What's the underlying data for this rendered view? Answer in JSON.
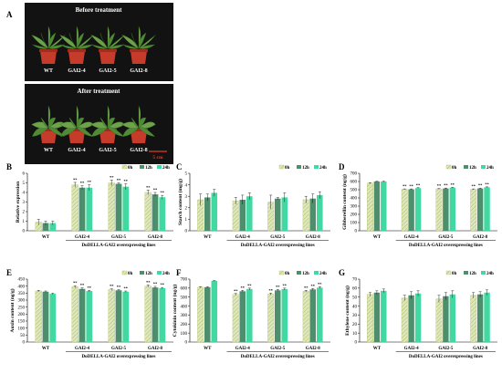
{
  "figure": {
    "panel_a": {
      "letter": "A",
      "top_title": "Before treatment",
      "bottom_title": "After treatment",
      "top_labels": [
        "WT",
        "GAI2-4",
        "GAI2-5",
        "GAI2-8"
      ],
      "bottom_labels": [
        "WT",
        "GAI2-4",
        "GAI2-5",
        "GAI2-8"
      ],
      "scale_bar": "5 cm"
    },
    "legend": [
      "0h",
      "12h",
      "24h"
    ],
    "colors": {
      "0h": "#dfe7bf",
      "0h_hatch": "#b7c86e",
      "12h": "#4d8f6c",
      "24h": "#41d8a1",
      "photo_bg": "#121212",
      "pot": "#c73b2a"
    }
  },
  "chart_data": [
    {
      "panel": "B",
      "type": "bar",
      "ylabel": "Relative expression",
      "categories": [
        "WT",
        "GAI2-4",
        "GAI2-5",
        "GAI2-8"
      ],
      "group_title": "DoDELLA-GAI2 overexpressing lines",
      "ylim": [
        0,
        6
      ],
      "yticks": [
        0,
        1,
        2,
        3,
        4,
        5,
        6
      ],
      "series": [
        {
          "name": "0h",
          "values": [
            0.9,
            4.8,
            5.0,
            4.0
          ],
          "errors": [
            0.3,
            0.25,
            0.3,
            0.25
          ]
        },
        {
          "name": "12h",
          "values": [
            0.8,
            4.5,
            4.9,
            3.8
          ],
          "errors": [
            0.2,
            0.2,
            0.1,
            0.2
          ]
        },
        {
          "name": "24h",
          "values": [
            0.8,
            4.5,
            4.6,
            3.5
          ],
          "errors": [
            0.2,
            0.3,
            0.3,
            0.2
          ]
        }
      ],
      "significance": [
        [
          "",
          "**",
          "**",
          "**"
        ],
        [
          "",
          "**",
          "**",
          "**"
        ],
        [
          "",
          "**",
          "**",
          "**"
        ]
      ]
    },
    {
      "panel": "C",
      "type": "bar",
      "ylabel": "Starch content (mg/g)",
      "categories": [
        "WT",
        "GAI2-4",
        "GAI2-5",
        "GAI2-8"
      ],
      "group_title": "DoDELLA-GAI2 overexpressing lines",
      "ylim": [
        0,
        5
      ],
      "yticks": [
        0,
        1,
        2,
        3,
        4,
        5
      ],
      "series": [
        {
          "name": "0h",
          "values": [
            2.7,
            2.6,
            2.5,
            2.7
          ],
          "errors": [
            0.5,
            0.3,
            0.6,
            0.3
          ]
        },
        {
          "name": "12h",
          "values": [
            2.9,
            2.7,
            2.8,
            2.8
          ],
          "errors": [
            0.3,
            0.4,
            0.1,
            0.4
          ]
        },
        {
          "name": "24h",
          "values": [
            3.3,
            3.0,
            2.9,
            3.1
          ],
          "errors": [
            0.3,
            0.3,
            0.4,
            0.3
          ]
        }
      ],
      "significance": [
        [
          "",
          "",
          "",
          ""
        ],
        [
          "",
          "",
          "",
          ""
        ],
        [
          "",
          "",
          "",
          ""
        ]
      ]
    },
    {
      "panel": "D",
      "type": "bar",
      "ylabel": "Gibberellin content (ng/g)",
      "categories": [
        "WT",
        "GAI2-4",
        "GAI2-5",
        "GAI2-8"
      ],
      "group_title": "DoDELLA-GAI2 overexpressing lines",
      "ylim": [
        0,
        700
      ],
      "yticks": [
        0,
        100,
        200,
        300,
        400,
        500,
        600,
        700
      ],
      "series": [
        {
          "name": "0h",
          "values": [
            580,
            505,
            510,
            505
          ],
          "errors": [
            5,
            5,
            5,
            5
          ]
        },
        {
          "name": "12h",
          "values": [
            600,
            505,
            515,
            515
          ],
          "errors": [
            5,
            5,
            5,
            5
          ]
        },
        {
          "name": "24h",
          "values": [
            600,
            520,
            525,
            530
          ],
          "errors": [
            5,
            5,
            5,
            5
          ]
        }
      ],
      "significance": [
        [
          "",
          "**",
          "**",
          "**"
        ],
        [
          "",
          "**",
          "**",
          "**"
        ],
        [
          "",
          "**",
          "**",
          "**"
        ]
      ]
    },
    {
      "panel": "E",
      "type": "bar",
      "ylabel": "Auxin content (ng/g)",
      "categories": [
        "WT",
        "GAI2-4",
        "GAI2-5",
        "GAI2-8"
      ],
      "group_title": "DoDELLA-GAI2 overexpressing lines",
      "ylim": [
        0,
        450
      ],
      "yticks": [
        0,
        50,
        100,
        150,
        200,
        250,
        300,
        350,
        400,
        450
      ],
      "series": [
        {
          "name": "0h",
          "values": [
            365,
            395,
            375,
            400
          ],
          "errors": [
            5,
            8,
            5,
            8
          ]
        },
        {
          "name": "12h",
          "values": [
            360,
            380,
            370,
            390
          ],
          "errors": [
            5,
            8,
            5,
            8
          ]
        },
        {
          "name": "24h",
          "values": [
            345,
            365,
            360,
            385
          ],
          "errors": [
            5,
            5,
            5,
            5
          ]
        }
      ],
      "significance": [
        [
          "",
          "**",
          "**",
          "**"
        ],
        [
          "",
          "**",
          "**",
          "**"
        ],
        [
          "",
          "**",
          "**",
          "**"
        ]
      ]
    },
    {
      "panel": "F",
      "type": "bar",
      "ylabel": "Cytokinin content (ng/g)",
      "categories": [
        "WT",
        "GAI2-4",
        "GAI2-5",
        "GAI2-8"
      ],
      "group_title": "DoDELLA-GAI2 overexpressing lines",
      "ylim": [
        0,
        700
      ],
      "yticks": [
        0,
        100,
        200,
        300,
        400,
        500,
        600,
        700
      ],
      "series": [
        {
          "name": "0h",
          "values": [
            610,
            530,
            535,
            565
          ],
          "errors": [
            5,
            10,
            10,
            10
          ]
        },
        {
          "name": "12h",
          "values": [
            610,
            565,
            575,
            585
          ],
          "errors": [
            5,
            10,
            10,
            10
          ]
        },
        {
          "name": "24h",
          "values": [
            680,
            590,
            590,
            605
          ],
          "errors": [
            5,
            10,
            10,
            10
          ]
        }
      ],
      "significance": [
        [
          "",
          "**",
          "**",
          "**"
        ],
        [
          "",
          "**",
          "**",
          "**"
        ],
        [
          "",
          "**",
          "**",
          "**"
        ]
      ]
    },
    {
      "panel": "G",
      "type": "bar",
      "ylabel": "Ethylene content (ng/g)",
      "categories": [
        "WT",
        "GAI2-4",
        "GAI2-5",
        "GAI2-8"
      ],
      "group_title": "DoDELLA-GAI2 overexpressing lines",
      "ylim": [
        0,
        70
      ],
      "yticks": [
        0,
        10,
        20,
        30,
        40,
        50,
        60,
        70
      ],
      "series": [
        {
          "name": "0h",
          "values": [
            53,
            49,
            48,
            52
          ],
          "errors": [
            2,
            3,
            4,
            3
          ]
        },
        {
          "name": "12h",
          "values": [
            55,
            52,
            51,
            53
          ],
          "errors": [
            2,
            4,
            4,
            3
          ]
        },
        {
          "name": "24h",
          "values": [
            57,
            54,
            53,
            55
          ],
          "errors": [
            2,
            3,
            4,
            3
          ]
        }
      ],
      "significance": [
        [
          "",
          "",
          "",
          ""
        ],
        [
          "",
          "",
          "",
          ""
        ],
        [
          "",
          "",
          "",
          ""
        ]
      ]
    }
  ]
}
